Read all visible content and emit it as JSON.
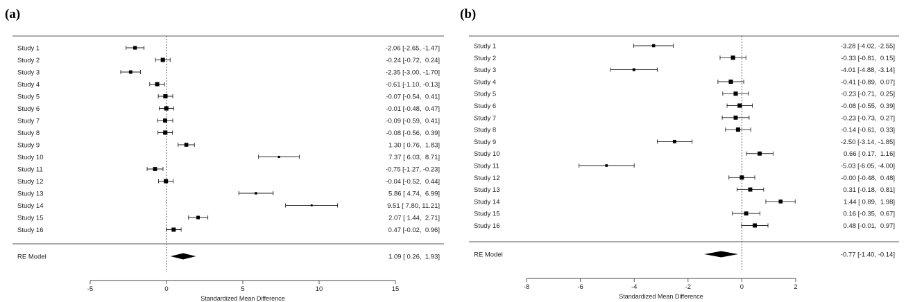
{
  "chart_data": [
    {
      "type": "forest",
      "panel_label": "(a)",
      "xlabel": "Standardized Mean Difference",
      "xlim": [
        -5,
        15
      ],
      "xticks": [
        -5,
        0,
        5,
        10,
        15
      ],
      "reference_line": 0,
      "studies": [
        {
          "label": "Study 1",
          "estimate": -2.06,
          "lower": -2.65,
          "upper": -1.47,
          "text": "-2.06 [-2.65, -1.47]"
        },
        {
          "label": "Study 2",
          "estimate": -0.24,
          "lower": -0.72,
          "upper": 0.24,
          "text": "-0.24 [-0.72,  0.24]"
        },
        {
          "label": "Study 3",
          "estimate": -2.35,
          "lower": -3.0,
          "upper": -1.7,
          "text": "-2.35 [-3.00, -1.70]"
        },
        {
          "label": "Study 4",
          "estimate": -0.61,
          "lower": -1.1,
          "upper": -0.13,
          "text": "-0.61 [-1.10, -0.13]"
        },
        {
          "label": "Study 5",
          "estimate": -0.07,
          "lower": -0.54,
          "upper": 0.41,
          "text": "-0.07 [-0.54,  0.41]"
        },
        {
          "label": "Study 6",
          "estimate": -0.01,
          "lower": -0.48,
          "upper": 0.47,
          "text": "-0.01 [-0.48,  0.47]"
        },
        {
          "label": "Study 7",
          "estimate": -0.09,
          "lower": -0.59,
          "upper": 0.41,
          "text": "-0.09 [-0.59,  0.41]"
        },
        {
          "label": "Study 8",
          "estimate": -0.08,
          "lower": -0.56,
          "upper": 0.39,
          "text": "-0.08 [-0.56,  0.39]"
        },
        {
          "label": "Study 9",
          "estimate": 1.3,
          "lower": 0.76,
          "upper": 1.83,
          "text": "1.30 [ 0.76,  1.83]"
        },
        {
          "label": "Study 10",
          "estimate": 7.37,
          "lower": 6.03,
          "upper": 8.71,
          "text": "7.37 [ 6.03,  8.71]"
        },
        {
          "label": "Study 11",
          "estimate": -0.75,
          "lower": -1.27,
          "upper": -0.23,
          "text": "-0.75 [-1.27, -0.23]"
        },
        {
          "label": "Study 12",
          "estimate": -0.04,
          "lower": -0.52,
          "upper": 0.44,
          "text": "-0.04 [-0.52,  0.44]"
        },
        {
          "label": "Study 13",
          "estimate": 5.86,
          "lower": 4.74,
          "upper": 6.99,
          "text": "5.86 [ 4.74,  6.99]"
        },
        {
          "label": "Study 14",
          "estimate": 9.51,
          "lower": 7.8,
          "upper": 11.21,
          "text": "9.51 [ 7.80, 11.21]"
        },
        {
          "label": "Study 15",
          "estimate": 2.07,
          "lower": 1.44,
          "upper": 2.71,
          "text": "2.07 [ 1.44,  2.71]"
        },
        {
          "label": "Study 16",
          "estimate": 0.47,
          "lower": -0.02,
          "upper": 0.96,
          "text": "0.47 [-0.02,  0.96]"
        }
      ],
      "summary": {
        "label": "RE Model",
        "estimate": 1.09,
        "lower": 0.26,
        "upper": 1.93,
        "text": "1.09 [ 0.26,  1.93]"
      }
    },
    {
      "type": "forest",
      "panel_label": "(b)",
      "xlabel": "Standardized Mean Difference",
      "xlim": [
        -8,
        2
      ],
      "xticks": [
        -8,
        -6,
        -4,
        -2,
        0,
        2
      ],
      "reference_line": 0,
      "studies": [
        {
          "label": "Study 1",
          "estimate": -3.28,
          "lower": -4.02,
          "upper": -2.55,
          "text": "-3.28 [-4.02, -2.55]"
        },
        {
          "label": "Study 2",
          "estimate": -0.33,
          "lower": -0.81,
          "upper": 0.15,
          "text": "-0.33 [-0.81,  0.15]"
        },
        {
          "label": "Study 3",
          "estimate": -4.01,
          "lower": -4.88,
          "upper": -3.14,
          "text": "-4.01 [-4.88, -3.14]"
        },
        {
          "label": "Study 4",
          "estimate": -0.41,
          "lower": -0.89,
          "upper": 0.07,
          "text": "-0.41 [-0.89,  0.07]"
        },
        {
          "label": "Study 5",
          "estimate": -0.23,
          "lower": -0.71,
          "upper": 0.25,
          "text": "-0.23 [-0.71,  0.25]"
        },
        {
          "label": "Study 6",
          "estimate": -0.08,
          "lower": -0.55,
          "upper": 0.39,
          "text": "-0.08 [-0.55,  0.39]"
        },
        {
          "label": "Study 7",
          "estimate": -0.23,
          "lower": -0.73,
          "upper": 0.27,
          "text": "-0.23 [-0.73,  0.27]"
        },
        {
          "label": "Study 8",
          "estimate": -0.14,
          "lower": -0.61,
          "upper": 0.33,
          "text": "-0.14 [-0.61,  0.33]"
        },
        {
          "label": "Study 9",
          "estimate": -2.5,
          "lower": -3.14,
          "upper": -1.85,
          "text": "-2.50 [-3.14, -1.85]"
        },
        {
          "label": "Study 10",
          "estimate": 0.66,
          "lower": 0.17,
          "upper": 1.16,
          "text": "0.66 [ 0.17,  1.16]"
        },
        {
          "label": "Study 11",
          "estimate": -5.03,
          "lower": -6.05,
          "upper": -4.0,
          "text": "-5.03 [-6.05, -4.00]"
        },
        {
          "label": "Study 12",
          "estimate": -0.0,
          "lower": -0.48,
          "upper": 0.48,
          "text": "-0.00 [-0.48,  0.48]"
        },
        {
          "label": "Study 13",
          "estimate": 0.31,
          "lower": -0.18,
          "upper": 0.81,
          "text": "0.31 [-0.18,  0.81]"
        },
        {
          "label": "Study 14",
          "estimate": 1.44,
          "lower": 0.89,
          "upper": 1.98,
          "text": "1.44 [ 0.89,  1.98]"
        },
        {
          "label": "Study 15",
          "estimate": 0.16,
          "lower": -0.35,
          "upper": 0.67,
          "text": "0.16 [-0.35,  0.67]"
        },
        {
          "label": "Study 16",
          "estimate": 0.48,
          "lower": -0.01,
          "upper": 0.97,
          "text": "0.48 [-0.01,  0.97]"
        }
      ],
      "summary": {
        "label": "RE Model",
        "estimate": -0.77,
        "lower": -1.4,
        "upper": -0.14,
        "text": "-0.77 [-1.40, -0.14]"
      }
    }
  ]
}
